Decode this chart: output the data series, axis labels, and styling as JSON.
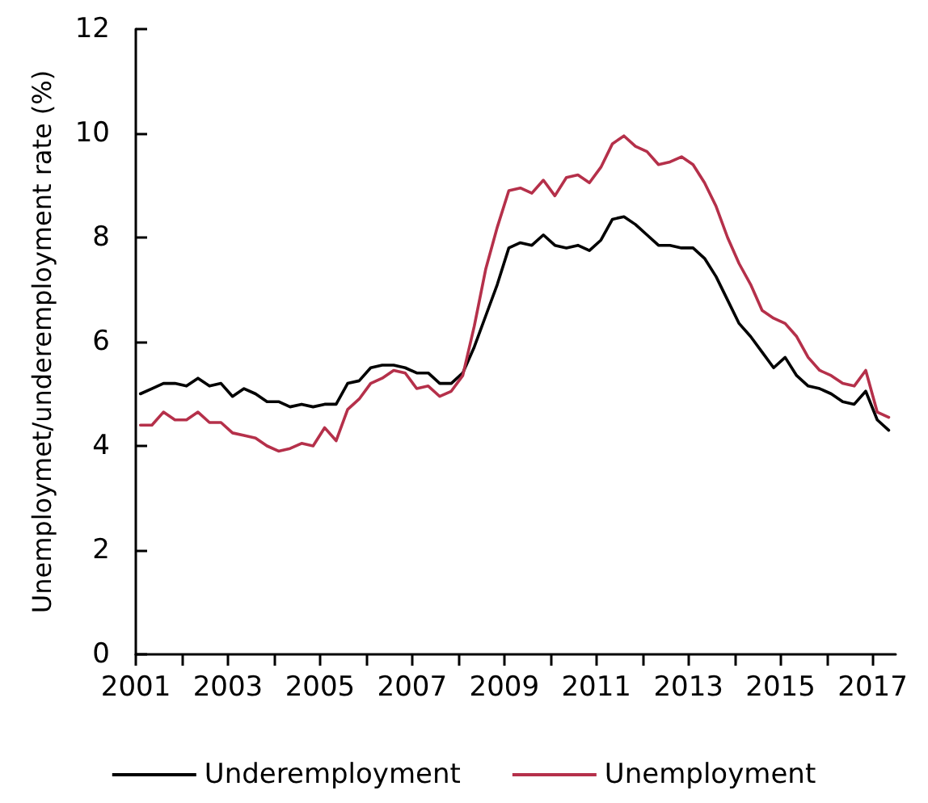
{
  "chart_data": {
    "type": "line",
    "ylabel": "Unemploymet/underemployment rate (%)",
    "x": [
      2001.1,
      2001.35,
      2001.6,
      2001.85,
      2002.1,
      2002.35,
      2002.6,
      2002.85,
      2003.1,
      2003.35,
      2003.6,
      2003.85,
      2004.1,
      2004.35,
      2004.6,
      2004.85,
      2005.1,
      2005.35,
      2005.6,
      2005.85,
      2006.1,
      2006.35,
      2006.6,
      2006.85,
      2007.1,
      2007.35,
      2007.6,
      2007.85,
      2008.1,
      2008.35,
      2008.6,
      2008.85,
      2009.1,
      2009.35,
      2009.6,
      2009.85,
      2010.1,
      2010.35,
      2010.6,
      2010.85,
      2011.1,
      2011.35,
      2011.6,
      2011.85,
      2012.1,
      2012.35,
      2012.6,
      2012.85,
      2013.1,
      2013.35,
      2013.6,
      2013.85,
      2014.1,
      2014.35,
      2014.6,
      2014.85,
      2015.1,
      2015.35,
      2015.6,
      2015.85,
      2016.1,
      2016.35,
      2016.6,
      2016.85,
      2017.1,
      2017.35
    ],
    "series": [
      {
        "name": "Underemployment",
        "color": "#000000",
        "values": [
          5.0,
          5.1,
          5.2,
          5.2,
          5.15,
          5.3,
          5.15,
          5.2,
          4.95,
          5.1,
          5.0,
          4.85,
          4.85,
          4.75,
          4.8,
          4.75,
          4.8,
          4.8,
          5.2,
          5.25,
          5.5,
          5.55,
          5.55,
          5.5,
          5.4,
          5.4,
          5.2,
          5.2,
          5.4,
          5.9,
          6.5,
          7.1,
          7.8,
          7.9,
          7.85,
          8.05,
          7.85,
          7.8,
          7.85,
          7.75,
          7.95,
          8.35,
          8.4,
          8.25,
          8.05,
          7.85,
          7.85,
          7.8,
          7.8,
          7.6,
          7.25,
          6.8,
          6.35,
          6.1,
          5.8,
          5.5,
          5.7,
          5.35,
          5.15,
          5.1,
          5.0,
          4.85,
          4.8,
          5.05,
          4.5,
          4.3
        ]
      },
      {
        "name": "Unemployment",
        "color": "#b5304a",
        "values": [
          4.4,
          4.4,
          4.65,
          4.5,
          4.5,
          4.65,
          4.45,
          4.45,
          4.25,
          4.2,
          4.15,
          4.0,
          3.9,
          3.95,
          4.05,
          4.0,
          4.35,
          4.1,
          4.7,
          4.9,
          5.2,
          5.3,
          5.45,
          5.4,
          5.1,
          5.15,
          4.95,
          5.05,
          5.35,
          6.3,
          7.4,
          8.2,
          8.9,
          8.95,
          8.85,
          9.1,
          8.8,
          9.15,
          9.2,
          9.05,
          9.35,
          9.8,
          9.95,
          9.75,
          9.65,
          9.4,
          9.45,
          9.55,
          9.4,
          9.05,
          8.6,
          8.0,
          7.5,
          7.1,
          6.6,
          6.45,
          6.35,
          6.1,
          5.7,
          5.45,
          5.35,
          5.2,
          5.15,
          5.45,
          4.65,
          4.55
        ]
      }
    ],
    "xlim": [
      2001,
      2017.5
    ],
    "xticks": [
      2001,
      {
        "value": 2002,
        "label": null
      },
      2003,
      {
        "value": 2004,
        "label": null
      },
      2005,
      {
        "value": 2006,
        "label": null
      },
      2007,
      {
        "value": 2008,
        "label": null
      },
      2009,
      {
        "value": 2010,
        "label": null
      },
      2011,
      {
        "value": 2012,
        "label": null
      },
      2013,
      {
        "value": 2014,
        "label": null
      },
      2015,
      {
        "value": 2016,
        "label": null
      },
      2017
    ],
    "ylim": [
      0,
      12
    ],
    "yticks": [
      0,
      2,
      4,
      6,
      8,
      10,
      12
    ],
    "grid": false,
    "legend": "bottom",
    "marker": "none",
    "line_style": "solid"
  }
}
